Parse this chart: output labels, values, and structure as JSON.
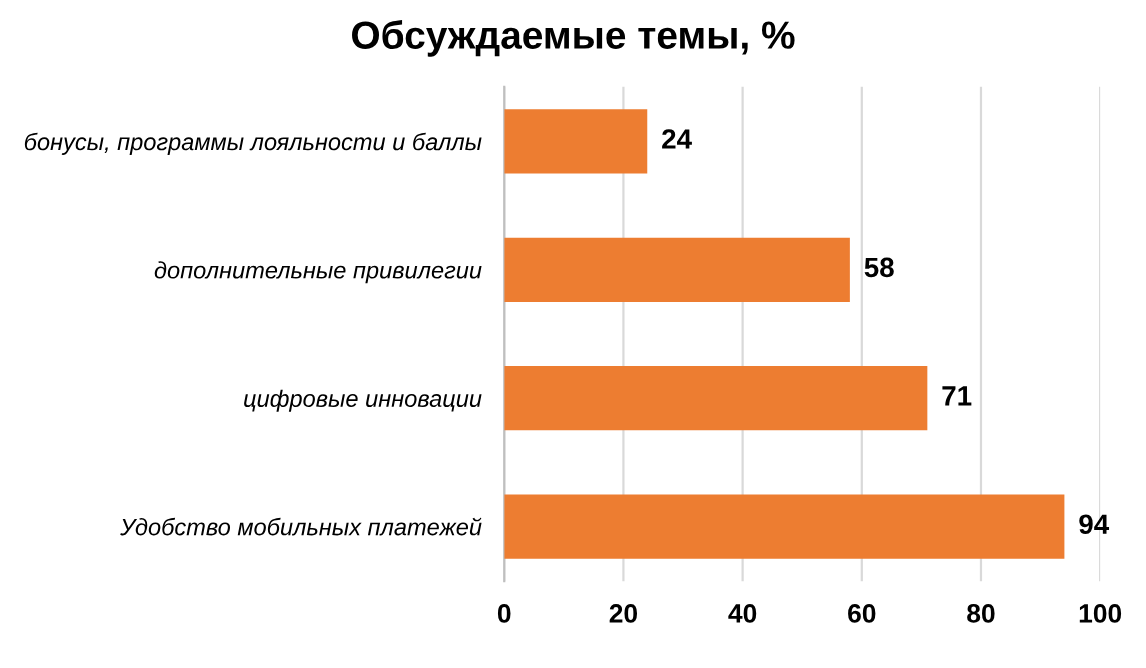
{
  "chart_data": {
    "type": "bar",
    "orientation": "horizontal",
    "title": "Обсуждаемые темы, %",
    "categories": [
      "бонусы, программы лояльности и баллы",
      "дополнительные привилегии",
      "цифровые инновации",
      "Удобство мобильных платежей"
    ],
    "values": [
      24,
      58,
      71,
      94
    ],
    "color": "#ed7d31",
    "data_labels": true,
    "xlim": [
      0,
      100
    ],
    "xticks": [
      0,
      20,
      40,
      60,
      80,
      100
    ],
    "grid": "x",
    "legend": false
  }
}
